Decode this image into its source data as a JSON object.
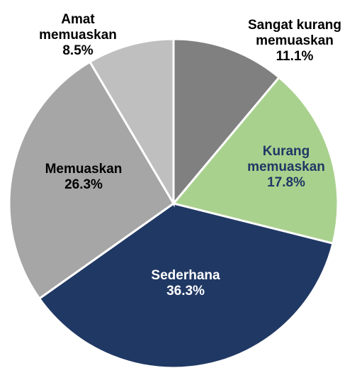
{
  "chart_data": {
    "type": "pie",
    "categories": [
      "Sangat kurang memuaskan",
      "Kurang memuaskan",
      "Sederhana",
      "Memuaskan",
      "Amat memuaskan"
    ],
    "values": [
      11.1,
      17.8,
      36.3,
      26.3,
      8.5
    ],
    "value_labels": [
      "11.1%",
      "17.8%",
      "36.3%",
      "26.3%",
      "8.5%"
    ],
    "colors": [
      "#808080",
      "#a9d18e",
      "#203864",
      "#a6a6a6",
      "#bfbfbf"
    ],
    "label_colors": [
      "#000000",
      "#1f3864",
      "#ffffff",
      "#000000",
      "#000000"
    ]
  }
}
